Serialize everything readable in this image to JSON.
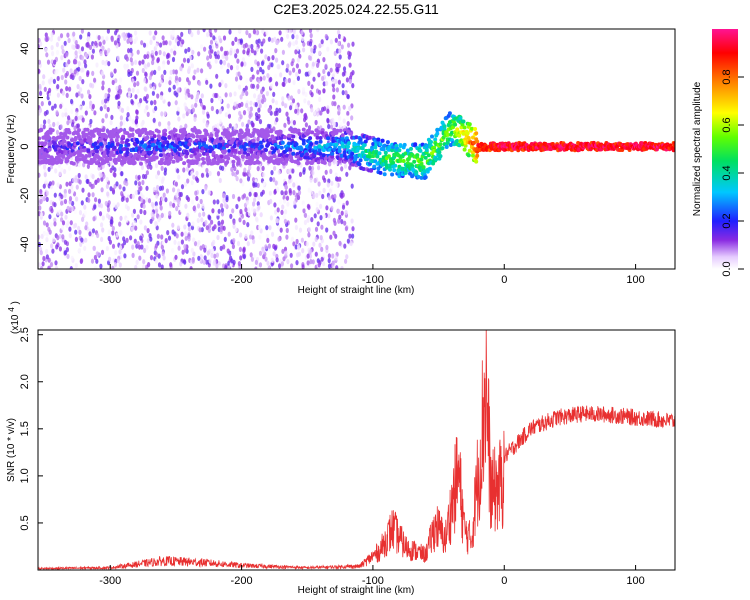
{
  "title": "C2E3.2025.024.22.55.G11",
  "colors": {
    "snr_line": "#e83030",
    "frame": "#000000"
  },
  "chart_data": [
    {
      "type": "heatmap",
      "name": "spectrogram",
      "xlabel": "Height of straight line (km)",
      "ylabel": "Frequency (Hz)",
      "xlim": [
        -355,
        130
      ],
      "ylim": [
        -50,
        48
      ],
      "xticks": [
        -300,
        -200,
        -100,
        0,
        100
      ],
      "yticks": [
        -40,
        -20,
        0,
        20,
        40
      ],
      "colorbar": {
        "label": "Normalized spectral amplitude",
        "range": [
          0,
          1
        ],
        "ticks": [
          0.0,
          0.2,
          0.4,
          0.6,
          0.8
        ],
        "colormap": "rainbow (white→purple→blue→cyan→green→yellow→red→magenta)"
      },
      "description_points": [
        {
          "x": -340,
          "y": 0,
          "amp": 0.15
        },
        {
          "x": -280,
          "y": 0,
          "amp": 0.25
        },
        {
          "x": -200,
          "y": 0,
          "amp": 0.2
        },
        {
          "x": -120,
          "y": 0,
          "amp": 0.35
        },
        {
          "x": -90,
          "y": -5,
          "amp": 0.5
        },
        {
          "x": -60,
          "y": -6,
          "amp": 0.55
        },
        {
          "x": -40,
          "y": 8,
          "amp": 0.55
        },
        {
          "x": -20,
          "y": 0,
          "amp": 0.9
        },
        {
          "x": 0,
          "y": 0,
          "amp": 0.95
        },
        {
          "x": 60,
          "y": 0,
          "amp": 0.95
        },
        {
          "x": 125,
          "y": 0,
          "amp": 0.95
        }
      ]
    },
    {
      "type": "line",
      "name": "snr",
      "xlabel": "Height of straight line (km)",
      "ylabel": "SNR (10 * v/v)",
      "yscale_label": "(x10",
      "yscale_exp": "4",
      "xlim": [
        -355,
        130
      ],
      "ylim": [
        0,
        2.55
      ],
      "xticks": [
        -300,
        -200,
        -100,
        0,
        100
      ],
      "yticks": [
        0.5,
        1.0,
        1.5,
        2.0,
        2.5
      ],
      "envelope": [
        {
          "x": -355,
          "y": 0.02
        },
        {
          "x": -300,
          "y": 0.03
        },
        {
          "x": -260,
          "y": 0.12
        },
        {
          "x": -230,
          "y": 0.1
        },
        {
          "x": -200,
          "y": 0.06
        },
        {
          "x": -150,
          "y": 0.03
        },
        {
          "x": -110,
          "y": 0.05
        },
        {
          "x": -95,
          "y": 0.25
        },
        {
          "x": -85,
          "y": 0.55
        },
        {
          "x": -75,
          "y": 0.3
        },
        {
          "x": -60,
          "y": 0.2
        },
        {
          "x": -52,
          "y": 0.6
        },
        {
          "x": -45,
          "y": 0.4
        },
        {
          "x": -35,
          "y": 1.3
        },
        {
          "x": -30,
          "y": 0.5
        },
        {
          "x": -25,
          "y": 0.4
        },
        {
          "x": -18,
          "y": 1.6
        },
        {
          "x": -14,
          "y": 2.5
        },
        {
          "x": -10,
          "y": 1.0
        },
        {
          "x": -5,
          "y": 1.1
        },
        {
          "x": 0,
          "y": 1.2
        },
        {
          "x": 10,
          "y": 1.35
        },
        {
          "x": 20,
          "y": 1.5
        },
        {
          "x": 40,
          "y": 1.62
        },
        {
          "x": 60,
          "y": 1.66
        },
        {
          "x": 80,
          "y": 1.65
        },
        {
          "x": 100,
          "y": 1.62
        },
        {
          "x": 130,
          "y": 1.58
        }
      ]
    }
  ]
}
